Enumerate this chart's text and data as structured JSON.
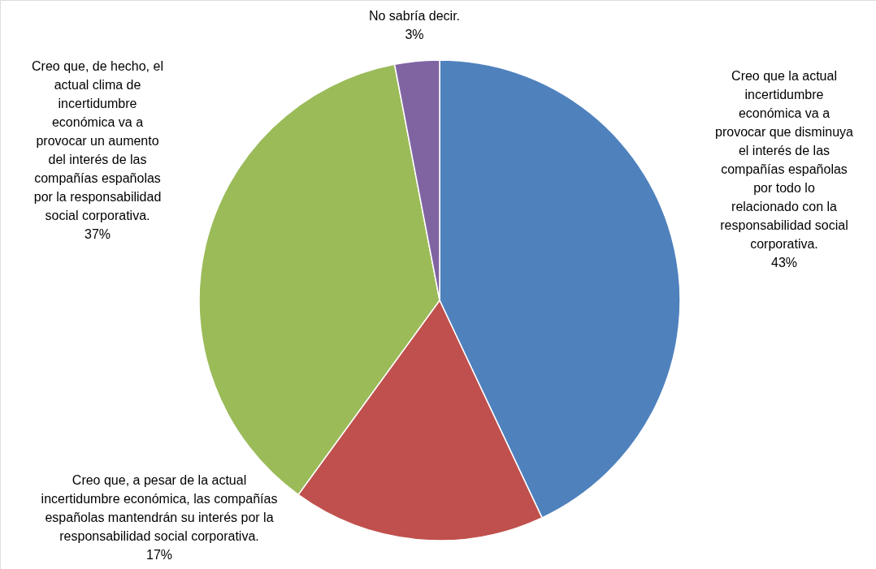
{
  "chart_data": {
    "type": "pie",
    "categories": [
      "Creo que la actual incertidumbre económica va a provocar que disminuya el interés de las compañías españolas por todo lo relacionado con la responsabilidad social corporativa.",
      "Creo que, a pesar de la actual incertidumbre económica, las compañías españolas mantendrán su interés por la responsabilidad social corporativa.",
      "Creo que, de hecho, el actual clima de incertidumbre económica va a provocar un aumento del interés de las compañías españolas por la responsabilidad social corporativa.",
      "No sabría decir."
    ],
    "values": [
      43,
      17,
      37,
      3
    ],
    "colors": [
      "#4f81bd",
      "#c0504d",
      "#9bbb59",
      "#8064a2"
    ],
    "value_labels": [
      "43%",
      "17%",
      "37%",
      "3%"
    ],
    "legend": false
  }
}
